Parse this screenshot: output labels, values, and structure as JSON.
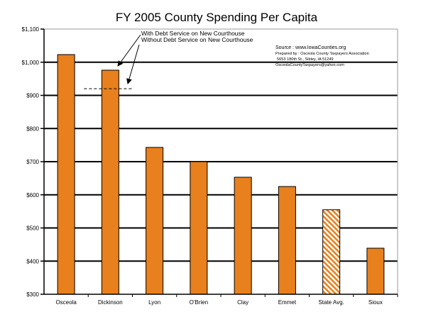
{
  "chart_data": {
    "type": "bar",
    "title": "FY 2005 County Spending Per Capita",
    "xlabel": "",
    "ylabel": "",
    "ylim": [
      300,
      1100
    ],
    "yticks": [
      300,
      400,
      500,
      600,
      700,
      800,
      900,
      1000,
      1100
    ],
    "ytick_labels": [
      "$300",
      "$400",
      "$500",
      "$600",
      "$700",
      "$800",
      "$900",
      "$1,000",
      "$1,100"
    ],
    "grid": true,
    "categories": [
      "Osceola",
      "Dickinson",
      "Lyon",
      "O'Brien",
      "Clay",
      "Emmet",
      "State Avg.",
      "Sioux"
    ],
    "values": [
      1023,
      976,
      743,
      700,
      653,
      625,
      555,
      439
    ],
    "hatched": [
      false,
      false,
      false,
      false,
      false,
      false,
      true,
      false
    ],
    "bar_color": "#E8801E",
    "reference_line": {
      "category": "Dickinson",
      "value": 920,
      "style": "dashed"
    },
    "annotations": [
      "With Debt Service on New Courthouse",
      "Without Debt Service on New Courthouse"
    ],
    "source": [
      "Source : www.IowaCounties.org",
      "Prepared by : Osceola County Taxpayers Association",
      "5653 180th St., Sibley, IA 51249",
      "OsceolaCountyTaxpayers@yahoo.com"
    ]
  }
}
